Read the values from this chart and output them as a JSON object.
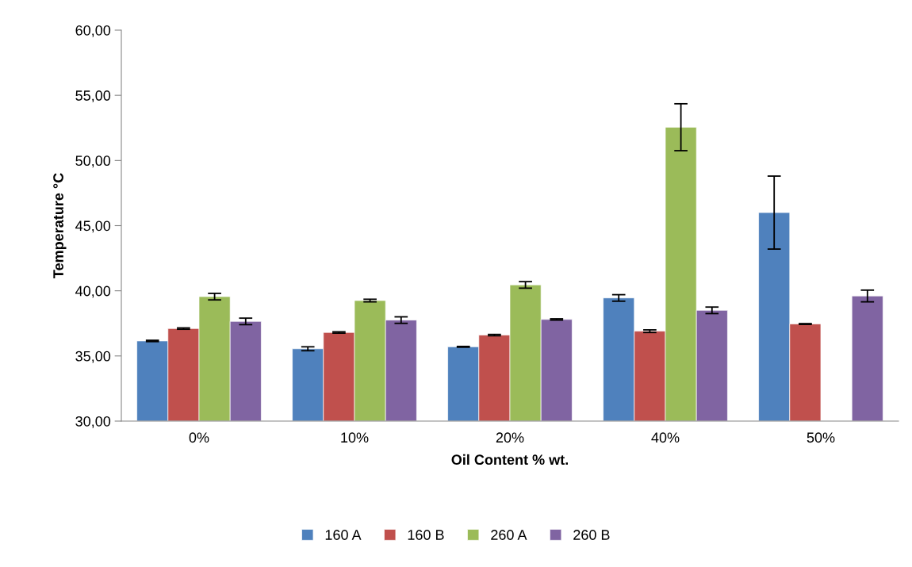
{
  "chart_data": {
    "type": "bar",
    "xlabel": "Oil Content % wt.",
    "ylabel": "Temperature °C",
    "categories": [
      "0%",
      "10%",
      "20%",
      "40%",
      "50%"
    ],
    "series": [
      {
        "name": "160 A",
        "color": "#4f81bd",
        "values": [
          36.15,
          35.55,
          35.7,
          39.45,
          46.0
        ],
        "errors": [
          0.05,
          0.15,
          0.03,
          0.25,
          2.8
        ]
      },
      {
        "name": "160 B",
        "color": "#c0504d",
        "values": [
          37.1,
          36.8,
          36.6,
          36.9,
          37.45
        ],
        "errors": [
          0.05,
          0.05,
          0.05,
          0.1,
          0.03
        ]
      },
      {
        "name": "260 A",
        "color": "#9bbb59",
        "values": [
          39.55,
          39.25,
          40.45,
          52.55,
          null
        ],
        "errors": [
          0.25,
          0.1,
          0.25,
          1.8,
          null
        ]
      },
      {
        "name": "260 B",
        "color": "#8064a2",
        "values": [
          37.65,
          37.75,
          37.8,
          38.5,
          39.6
        ],
        "errors": [
          0.25,
          0.25,
          0.05,
          0.25,
          0.45
        ]
      }
    ],
    "ylim": [
      30,
      60
    ],
    "yticks": [
      {
        "value": 30,
        "label": "30,00"
      },
      {
        "value": 35,
        "label": "35,00"
      },
      {
        "value": 40,
        "label": "40,00"
      },
      {
        "value": 45,
        "label": "45,00"
      },
      {
        "value": 50,
        "label": "50,00"
      },
      {
        "value": 55,
        "label": "55,00"
      },
      {
        "value": 60,
        "label": "60,00"
      }
    ],
    "grid": false,
    "legend": "bottom"
  }
}
